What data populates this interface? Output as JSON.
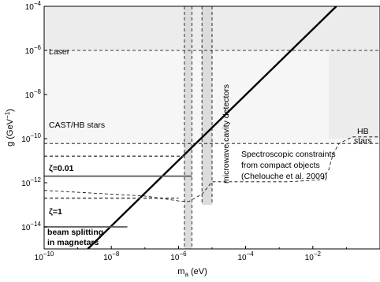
{
  "chart_data": {
    "type": "line",
    "xlabel_base": "m",
    "xlabel_sub": "a",
    "xlabel_unit": " (eV)",
    "ylabel": "g (GeV",
    "ylabel_sup": "−1",
    "ylabel_close": ")",
    "x_scale": "log",
    "y_scale": "log",
    "xlim": [
      1e-10,
      1
    ],
    "ylim": [
      1e-15,
      0.0001
    ],
    "x_ticks": [
      {
        "base": "10",
        "exp": "−10",
        "value": 1e-10
      },
      {
        "base": "10",
        "exp": "−8",
        "value": 1e-08
      },
      {
        "base": "10",
        "exp": "−6",
        "value": 1e-06
      },
      {
        "base": "10",
        "exp": "−4",
        "value": 0.0001
      },
      {
        "base": "10",
        "exp": "−2",
        "value": 0.01
      }
    ],
    "y_ticks": [
      {
        "base": "10",
        "exp": "−4",
        "value": 0.0001
      },
      {
        "base": "10",
        "exp": "−6",
        "value": 1e-06
      },
      {
        "base": "10",
        "exp": "−8",
        "value": 1e-08
      },
      {
        "base": "10",
        "exp": "−10",
        "value": 1e-10
      },
      {
        "base": "10",
        "exp": "−12",
        "value": 1e-12
      },
      {
        "base": "10",
        "exp": "−14",
        "value": 1e-14
      }
    ],
    "grid": false,
    "labels": {
      "laser": "Laser",
      "cast": "CAST/HB stars",
      "microwave": "microwave cavity detectors",
      "hb_line1": "HB",
      "hb_line2": "stars",
      "spectro_line1": "Spectroscopic constraints",
      "spectro_line2": "from compact objects",
      "spectro_line3": "(Chelouche et al. 2009)",
      "zeta001_sym": "ζ",
      "zeta001_val": "=0.01",
      "zeta1_sym": "ζ",
      "zeta1_val": "=1",
      "beam_line1": "beam splitting",
      "beam_line2": "in magnetars"
    },
    "series": [
      {
        "points": [
          [
            2e-09,
            1e-15
          ],
          [
            0.05,
            0.0001
          ]
        ],
        "style": "solid-thick"
      },
      {
        "points": [
          [
            1e-10,
            2e-12
          ],
          [
            2.5e-06,
            2e-12
          ]
        ],
        "style": "solid-gray"
      },
      {
        "points": [
          [
            1e-10,
            1e-14
          ],
          [
            3e-08,
            1e-14
          ]
        ],
        "style": "solid-gray"
      },
      {
        "points": [
          [
            1e-10,
            1.6e-11
          ],
          [
            1.5e-06,
            1.6e-11
          ]
        ],
        "style": "dashed-gray"
      },
      {
        "points": [
          [
            1e-10,
            2e-13
          ],
          [
            1e-06,
            2e-13
          ]
        ],
        "style": "dashed-gray"
      },
      {
        "points": [
          [
            1e-10,
            1e-06
          ],
          [
            1,
            1e-06
          ]
        ],
        "style": "dashed"
      },
      {
        "points": [
          [
            1e-10,
            6e-11
          ],
          [
            1,
            6e-11
          ]
        ],
        "style": "dashed"
      },
      {
        "points": [
          [
            1e-10,
            4.5e-13
          ],
          [
            1e-07,
            2.5e-13
          ],
          [
            1e-06,
            1.5e-13
          ],
          [
            2e-06,
            1.4e-13
          ],
          [
            5e-06,
            3e-13
          ],
          [
            1e-05,
            1.1e-12
          ],
          [
            0.002,
            1.1e-12
          ],
          [
            0.02,
            1.4e-12
          ],
          [
            0.03,
            4e-12
          ],
          [
            0.04,
            2e-11
          ],
          [
            0.06,
            6e-11
          ],
          [
            0.15,
            1.2e-10
          ],
          [
            1,
            1.2e-10
          ]
        ],
        "style": "dashed"
      }
    ],
    "regions": [
      {
        "name": "laser",
        "x": [
          1e-10,
          1
        ],
        "y": [
          1e-06,
          0.0001
        ],
        "fill": "#ececec"
      },
      {
        "name": "cast",
        "x": [
          1e-10,
          1
        ],
        "y": [
          6e-11,
          1e-06
        ],
        "fill": "#f6f6f6"
      },
      {
        "name": "hb",
        "x": [
          0.03,
          1
        ],
        "y": [
          1e-10,
          0.0001
        ],
        "fill": "#ececec"
      },
      {
        "name": "microwave-band",
        "x": [
          1.5e-06,
          2.5e-06
        ],
        "y": [
          1e-15,
          0.0001
        ],
        "fill": "#dcdcdc"
      },
      {
        "name": "microwave-band-2",
        "x": [
          5e-06,
          1e-05
        ],
        "y": [
          1e-13,
          0.0001
        ],
        "fill": "#dcdcdc"
      }
    ],
    "colors": {
      "thick_line": "#000000",
      "gray_line": "#555555",
      "dashed": "#000000",
      "shade_dark": "#dcdcdc",
      "shade_light": "#f2f2f2"
    }
  }
}
